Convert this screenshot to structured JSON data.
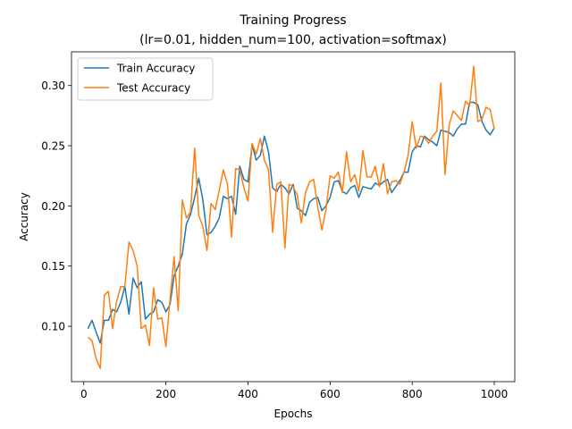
{
  "chart_data": {
    "type": "line",
    "title": "Training Progress",
    "subtitle": "(lr=0.01, hidden_num=100, activation=softmax)",
    "xlabel": "Epochs",
    "ylabel": "Accuracy",
    "xlim": [
      -30,
      1050
    ],
    "ylim": [
      0.054,
      0.328
    ],
    "xticks": [
      0,
      200,
      400,
      600,
      800,
      1000
    ],
    "yticks": [
      0.1,
      0.15,
      0.2,
      0.25,
      0.3
    ],
    "grid": false,
    "legend_position": "top-left",
    "x": [
      10,
      20,
      30,
      40,
      50,
      60,
      70,
      80,
      90,
      100,
      110,
      120,
      130,
      140,
      150,
      160,
      170,
      180,
      190,
      200,
      210,
      220,
      230,
      240,
      250,
      260,
      270,
      280,
      290,
      300,
      310,
      320,
      330,
      340,
      350,
      360,
      370,
      380,
      390,
      400,
      410,
      420,
      430,
      440,
      450,
      460,
      470,
      480,
      490,
      500,
      510,
      520,
      530,
      540,
      550,
      560,
      570,
      580,
      590,
      600,
      610,
      620,
      630,
      640,
      650,
      660,
      670,
      680,
      690,
      700,
      710,
      720,
      730,
      740,
      750,
      760,
      770,
      780,
      790,
      800,
      810,
      820,
      830,
      840,
      850,
      860,
      870,
      880,
      890,
      900,
      910,
      920,
      930,
      940,
      950,
      960,
      970,
      980,
      990,
      1000
    ],
    "series": [
      {
        "name": "Train Accuracy",
        "color": "#1f77b4",
        "values": [
          0.098,
          0.105,
          0.095,
          0.086,
          0.105,
          0.105,
          0.114,
          0.112,
          0.12,
          0.133,
          0.11,
          0.14,
          0.132,
          0.137,
          0.106,
          0.11,
          0.112,
          0.122,
          0.12,
          0.112,
          0.118,
          0.142,
          0.15,
          0.16,
          0.185,
          0.193,
          0.207,
          0.223,
          0.205,
          0.176,
          0.178,
          0.183,
          0.19,
          0.208,
          0.206,
          0.208,
          0.193,
          0.233,
          0.222,
          0.22,
          0.251,
          0.238,
          0.242,
          0.258,
          0.245,
          0.215,
          0.212,
          0.218,
          0.215,
          0.21,
          0.218,
          0.198,
          0.196,
          0.192,
          0.203,
          0.206,
          0.207,
          0.196,
          0.2,
          0.207,
          0.22,
          0.221,
          0.212,
          0.21,
          0.215,
          0.217,
          0.207,
          0.216,
          0.215,
          0.214,
          0.219,
          0.217,
          0.22,
          0.222,
          0.211,
          0.216,
          0.221,
          0.228,
          0.228,
          0.245,
          0.25,
          0.249,
          0.258,
          0.255,
          0.253,
          0.25,
          0.263,
          0.262,
          0.261,
          0.258,
          0.264,
          0.268,
          0.268,
          0.286,
          0.286,
          0.284,
          0.27,
          0.263,
          0.259,
          0.265
        ]
      },
      {
        "name": "Test Accuracy",
        "color": "#ff7f0e",
        "values": [
          0.091,
          0.088,
          0.073,
          0.065,
          0.126,
          0.129,
          0.098,
          0.121,
          0.133,
          0.133,
          0.17,
          0.163,
          0.15,
          0.098,
          0.101,
          0.084,
          0.132,
          0.106,
          0.107,
          0.083,
          0.122,
          0.158,
          0.113,
          0.205,
          0.19,
          0.195,
          0.248,
          0.192,
          0.183,
          0.163,
          0.202,
          0.197,
          0.213,
          0.23,
          0.218,
          0.174,
          0.231,
          0.23,
          0.215,
          0.204,
          0.252,
          0.243,
          0.256,
          0.238,
          0.23,
          0.178,
          0.218,
          0.22,
          0.165,
          0.218,
          0.216,
          0.209,
          0.186,
          0.211,
          0.22,
          0.222,
          0.199,
          0.18,
          0.197,
          0.225,
          0.223,
          0.228,
          0.211,
          0.245,
          0.22,
          0.226,
          0.212,
          0.246,
          0.224,
          0.224,
          0.233,
          0.216,
          0.235,
          0.21,
          0.22,
          0.221,
          0.218,
          0.228,
          0.242,
          0.27,
          0.248,
          0.258,
          0.257,
          0.252,
          0.258,
          0.262,
          0.302,
          0.226,
          0.267,
          0.279,
          0.275,
          0.271,
          0.287,
          0.283,
          0.316,
          0.27,
          0.272,
          0.282,
          0.28,
          0.264
        ]
      }
    ]
  }
}
